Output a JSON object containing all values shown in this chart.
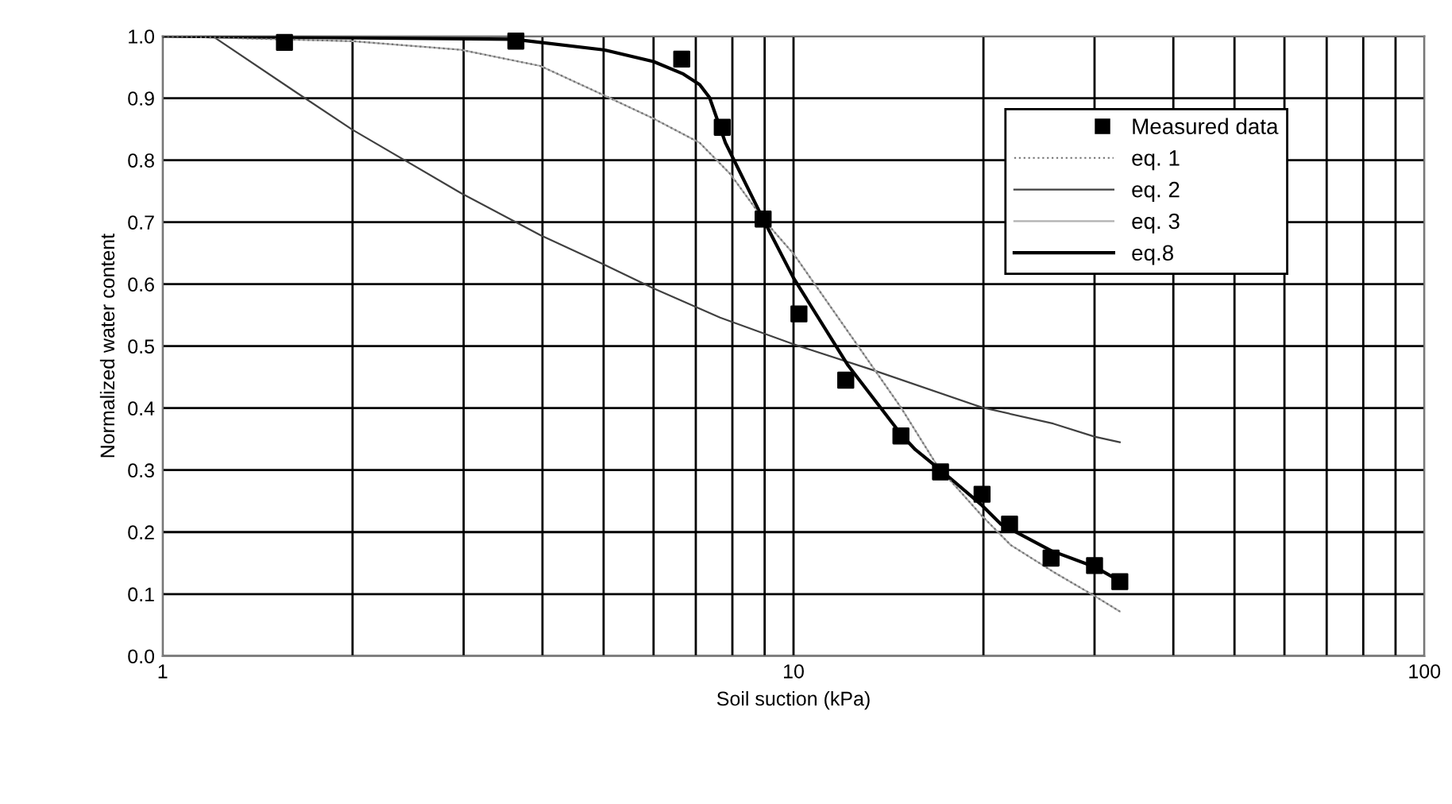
{
  "chart_data": {
    "type": "line",
    "xlabel": "Soil suction (kPa)",
    "ylabel": "Normalized water content",
    "log": "x",
    "xlim": [
      1,
      100
    ],
    "xticks": [
      1,
      {
        "value": 2,
        "label": null
      },
      {
        "value": 3,
        "label": null
      },
      {
        "value": 4,
        "label": null
      },
      {
        "value": 5,
        "label": null
      },
      {
        "value": 6,
        "label": null
      },
      {
        "value": 7,
        "label": null
      },
      {
        "value": 8,
        "label": null
      },
      {
        "value": 9,
        "label": null
      },
      10,
      {
        "value": 20,
        "label": null
      },
      {
        "value": 30,
        "label": null
      },
      {
        "value": 40,
        "label": null
      },
      {
        "value": 50,
        "label": null
      },
      {
        "value": 60,
        "label": null
      },
      {
        "value": 70,
        "label": null
      },
      {
        "value": 80,
        "label": null
      },
      {
        "value": 90,
        "label": null
      },
      100
    ],
    "ylim": [
      0,
      1
    ],
    "yticks": [
      {
        "value": 0,
        "label": "0.0"
      },
      0.1,
      0.2,
      0.3,
      0.4,
      0.5,
      0.6,
      0.7,
      0.8,
      0.9,
      {
        "value": 1,
        "label": "1.0"
      }
    ],
    "grid": true,
    "legend": "top right",
    "series": [
      {
        "name": "Measured data",
        "type": "scatter",
        "marker": "square",
        "color": "#000000",
        "x": [
          1.56,
          3.63,
          6.65,
          7.71,
          8.95,
          10.2,
          12.1,
          14.8,
          17.1,
          19.9,
          22.0,
          25.6,
          30.0,
          32.9
        ],
        "values": [
          0.99,
          0.992,
          0.963,
          0.853,
          0.705,
          0.552,
          0.445,
          0.355,
          0.297,
          0.261,
          0.213,
          0.158,
          0.146,
          0.12
        ]
      },
      {
        "name": "eq. 1",
        "type": "line",
        "line_style": "dotted",
        "color": "#707070",
        "x": [
          1,
          2,
          2.97,
          3.97,
          5.0,
          6.0,
          7.1,
          7.95,
          8.95,
          10,
          12.6,
          14.8,
          16.9,
          19.9,
          22.1,
          25.8,
          30,
          32.9
        ],
        "values": [
          1.0,
          0.992,
          0.978,
          0.952,
          0.905,
          0.867,
          0.828,
          0.777,
          0.705,
          0.649,
          0.503,
          0.401,
          0.307,
          0.226,
          0.179,
          0.136,
          0.097,
          0.072
        ]
      },
      {
        "name": "eq. 2",
        "type": "line",
        "line_style": "solid",
        "color": "#404040",
        "x": [
          1.2,
          1.63,
          2.0,
          2.97,
          3.97,
          5.0,
          6.0,
          7.65,
          10,
          13.4,
          19.9,
          25.8,
          30,
          32.9
        ],
        "values": [
          1.0,
          0.909,
          0.849,
          0.747,
          0.679,
          0.632,
          0.593,
          0.546,
          0.503,
          0.461,
          0.401,
          0.375,
          0.354,
          0.345
        ]
      },
      {
        "name": "eq. 3",
        "type": "line",
        "line_style": "solid",
        "color": "#b0b0b0",
        "x": [
          1,
          2,
          2.97,
          3.97,
          5.0,
          6.0,
          7.1,
          7.95,
          8.95,
          10,
          12.6,
          14.8,
          16.9,
          19.9,
          22.1,
          25.8,
          30,
          32.9
        ],
        "values": [
          1.0,
          0.992,
          0.978,
          0.952,
          0.905,
          0.867,
          0.828,
          0.777,
          0.705,
          0.649,
          0.503,
          0.401,
          0.307,
          0.226,
          0.179,
          0.136,
          0.097,
          0.072
        ]
      },
      {
        "name": "eq.8",
        "type": "line",
        "line_style": "solid",
        "color": "#000000",
        "x": [
          1,
          3.6,
          5.0,
          6.0,
          6.69,
          7.1,
          7.36,
          7.8,
          8.95,
          10,
          12.2,
          14.8,
          15.6,
          17.2,
          19.9,
          21.3,
          25.6,
          30,
          32.9
        ],
        "values": [
          1.0,
          0.995,
          0.978,
          0.959,
          0.939,
          0.922,
          0.901,
          0.828,
          0.705,
          0.61,
          0.469,
          0.358,
          0.333,
          0.298,
          0.243,
          0.213,
          0.17,
          0.144,
          0.121
        ]
      }
    ]
  }
}
